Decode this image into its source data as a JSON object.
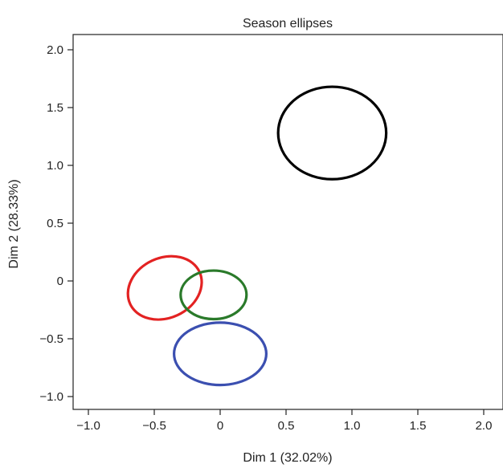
{
  "chart_data": {
    "type": "scatter",
    "title": "Season ellipses",
    "xlabel": "Dim 1 (32.02%)",
    "ylabel": "Dim 2 (28.33%)",
    "xlim": [
      -1.1,
      2.1
    ],
    "ylim": [
      -1.1,
      2.2
    ],
    "x_ticks": [
      -1.0,
      -0.5,
      0,
      0.5,
      1.0,
      1.5,
      2.0
    ],
    "x_tick_labels": [
      "−1.0",
      "−0.5",
      "0",
      "0.5",
      "1.0",
      "1.5",
      "2.0"
    ],
    "y_ticks": [
      -1.0,
      -0.5,
      0,
      0.5,
      1.0,
      1.5,
      2.0
    ],
    "y_tick_labels": [
      "−1.0",
      "−0.5",
      "0",
      "0.5",
      "1.0",
      "1.5",
      "2.0"
    ],
    "grid": false,
    "legend": "none",
    "series": [
      {
        "color": "#000000",
        "center": [
          0.85,
          1.28
        ],
        "radius_x": 0.41,
        "radius_y": 0.4,
        "rotation_deg": 0
      },
      {
        "color": "#e32222",
        "center": [
          -0.42,
          -0.06
        ],
        "radius_x": 0.29,
        "radius_y": 0.26,
        "rotation_deg": -25
      },
      {
        "color": "#2a7a2a",
        "center": [
          -0.05,
          -0.12
        ],
        "radius_x": 0.25,
        "radius_y": 0.21,
        "rotation_deg": 0
      },
      {
        "color": "#3b4fb0",
        "center": [
          0.0,
          -0.63
        ],
        "radius_x": 0.35,
        "radius_y": 0.27,
        "rotation_deg": 0
      }
    ]
  }
}
